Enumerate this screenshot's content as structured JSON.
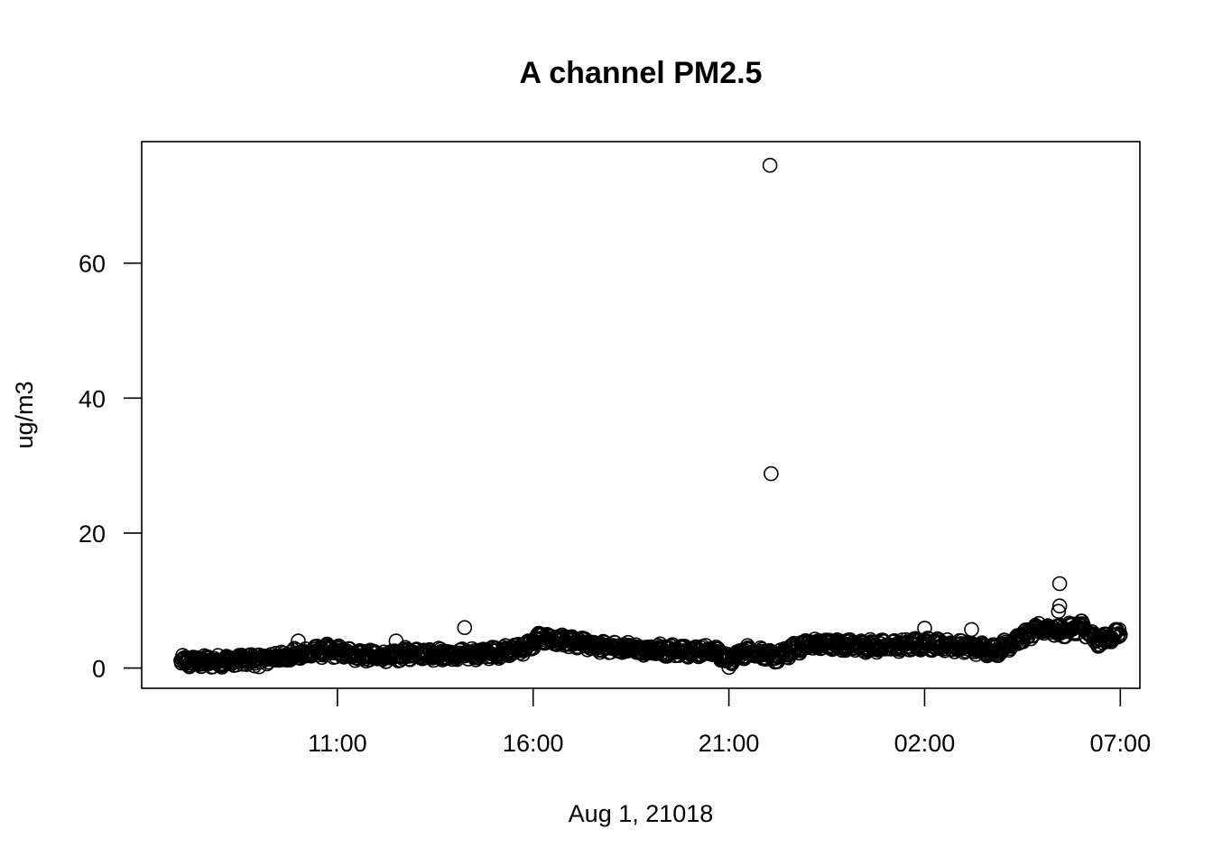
{
  "chart_data": {
    "type": "scatter",
    "title": "A channel PM2.5",
    "xlabel": "Aug 1, 21018",
    "ylabel": "ug/m3",
    "x_unit": "hours after midnight Aug 1 (clock time)",
    "xlim": [
      6.0,
      31.5
    ],
    "ylim": [
      -3,
      78
    ],
    "x_ticks": [
      {
        "value": 11,
        "label": "11:00"
      },
      {
        "value": 16,
        "label": "16:00"
      },
      {
        "value": 21,
        "label": "21:00"
      },
      {
        "value": 26,
        "label": "02:00"
      },
      {
        "value": 31,
        "label": "07:00"
      }
    ],
    "y_ticks": [
      {
        "value": 0,
        "label": "0"
      },
      {
        "value": 20,
        "label": "20"
      },
      {
        "value": 40,
        "label": "40"
      },
      {
        "value": 60,
        "label": "60"
      }
    ],
    "grid": false,
    "legend": "none",
    "marker": "open-circle",
    "marker_color": "#000000",
    "x_range": [
      7.0,
      31.0
    ],
    "trend": [
      [
        7.0,
        0.9
      ],
      [
        8.0,
        1.0
      ],
      [
        9.0,
        1.3
      ],
      [
        10.0,
        2.0
      ],
      [
        10.7,
        2.6
      ],
      [
        11.5,
        2.0
      ],
      [
        12.2,
        1.6
      ],
      [
        13.0,
        2.3
      ],
      [
        14.0,
        1.9
      ],
      [
        15.0,
        2.3
      ],
      [
        15.8,
        3.0
      ],
      [
        16.2,
        4.5
      ],
      [
        17.0,
        3.8
      ],
      [
        18.0,
        3.0
      ],
      [
        19.0,
        2.7
      ],
      [
        20.0,
        2.6
      ],
      [
        20.6,
        2.5
      ],
      [
        21.0,
        1.2
      ],
      [
        21.5,
        2.6
      ],
      [
        22.2,
        1.6
      ],
      [
        23.0,
        3.6
      ],
      [
        24.0,
        3.4
      ],
      [
        25.0,
        3.2
      ],
      [
        26.0,
        3.6
      ],
      [
        27.0,
        3.2
      ],
      [
        27.8,
        2.6
      ],
      [
        28.3,
        4.0
      ],
      [
        29.0,
        6.0
      ],
      [
        29.5,
        5.4
      ],
      [
        30.0,
        6.2
      ],
      [
        30.4,
        3.8
      ],
      [
        31.0,
        5.3
      ]
    ],
    "spread": 0.7,
    "outliers": [
      {
        "x": 22.05,
        "y": 74.5
      },
      {
        "x": 22.08,
        "y": 28.8
      },
      {
        "x": 29.45,
        "y": 12.5
      },
      {
        "x": 29.45,
        "y": 9.2
      },
      {
        "x": 29.42,
        "y": 8.4
      },
      {
        "x": 10.0,
        "y": 4.0
      },
      {
        "x": 14.25,
        "y": 6.0
      },
      {
        "x": 12.5,
        "y": 4.0
      },
      {
        "x": 26.0,
        "y": 5.9
      },
      {
        "x": 27.2,
        "y": 5.7
      },
      {
        "x": 21.0,
        "y": 0.1
      },
      {
        "x": 9.0,
        "y": 0.2
      }
    ]
  }
}
